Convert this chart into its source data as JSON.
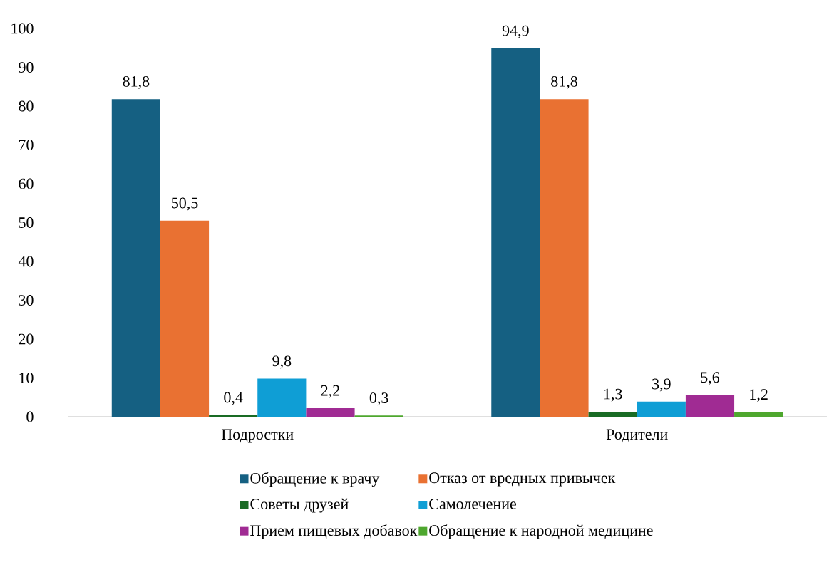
{
  "chart_data": {
    "type": "bar",
    "categories": [
      "Подростки",
      "Родители"
    ],
    "series": [
      {
        "name": "Обращение к врачу",
        "color": "#156082",
        "values": [
          81.8,
          94.9
        ],
        "value_labels": [
          "81,8",
          "94,9"
        ]
      },
      {
        "name": "Отказ от вредных привычек",
        "color": "#e97132",
        "values": [
          50.5,
          81.8
        ],
        "value_labels": [
          "50,5",
          "81,8"
        ]
      },
      {
        "name": "Советы друзей",
        "color": "#196b24",
        "values": [
          0.4,
          1.3
        ],
        "value_labels": [
          "0,4",
          "1,3"
        ]
      },
      {
        "name": "Самолечение",
        "color": "#0f9ed5",
        "values": [
          9.8,
          3.9
        ],
        "value_labels": [
          "9,8",
          "3,9"
        ]
      },
      {
        "name": "Прием пищевых добавок",
        "color": "#a02b93",
        "values": [
          2.2,
          5.6
        ],
        "value_labels": [
          "2,2",
          "5,6"
        ]
      },
      {
        "name": "Обращение к народной медицине",
        "color": "#4ea72e",
        "values": [
          0.3,
          1.2
        ],
        "value_labels": [
          "0,3",
          "1,2"
        ]
      }
    ],
    "ylim": [
      0,
      100
    ],
    "yticks": [
      0,
      10,
      20,
      30,
      40,
      50,
      60,
      70,
      80,
      90,
      100
    ],
    "grid": false,
    "legend": "bottom"
  }
}
